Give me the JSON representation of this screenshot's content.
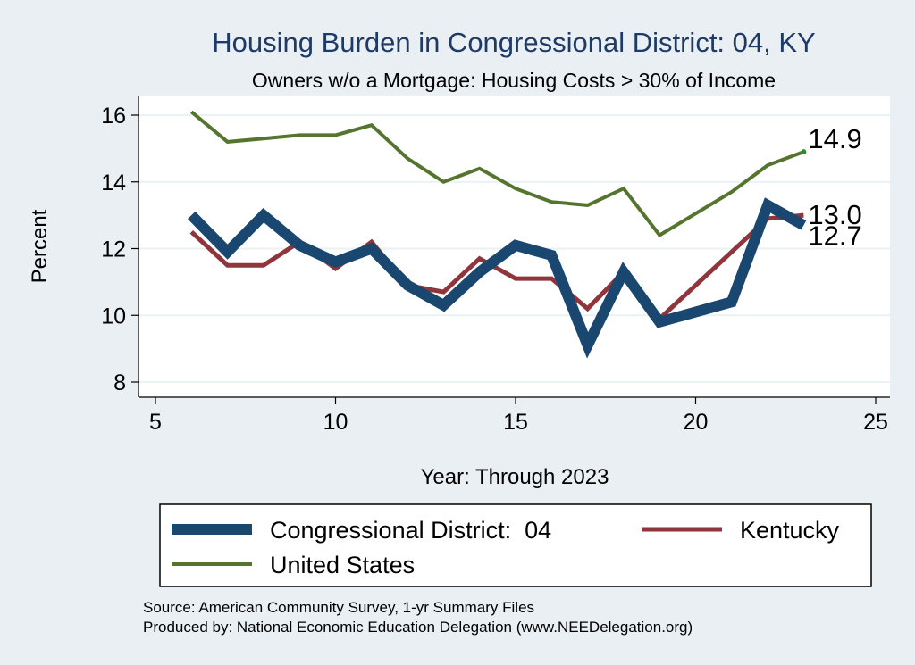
{
  "chart_data": {
    "type": "line",
    "title": "Housing Burden in Congressional District:  04, KY",
    "subtitle": "Owners w/o a Mortgage: Housing Costs > 30% of Income",
    "xlabel": "Year: Through 2023",
    "ylabel": "Percent",
    "xlim": [
      5,
      25
    ],
    "ylim": [
      7.5,
      16.5
    ],
    "xticks": [
      5,
      10,
      15,
      20,
      25
    ],
    "yticks": [
      8,
      10,
      12,
      14,
      16
    ],
    "grid": true,
    "legend_position": "bottom",
    "series": [
      {
        "name": "Congressional District:  04",
        "color": "#1a476f",
        "x": [
          6,
          7,
          8,
          9,
          10,
          11,
          12,
          13,
          14,
          15,
          16,
          17,
          18,
          19,
          21,
          22,
          23
        ],
        "values": [
          13.0,
          11.9,
          13.0,
          12.1,
          11.6,
          12.0,
          10.9,
          10.3,
          11.3,
          12.1,
          11.8,
          9.1,
          11.3,
          9.8,
          10.4,
          13.3,
          12.7
        ],
        "end_label": "12.7"
      },
      {
        "name": "Kentucky",
        "color": "#90353b",
        "x": [
          6,
          7,
          8,
          9,
          10,
          11,
          12,
          13,
          14,
          15,
          16,
          17,
          18,
          19,
          21,
          22,
          23
        ],
        "values": [
          12.5,
          11.5,
          11.5,
          12.2,
          11.4,
          12.2,
          10.9,
          10.7,
          11.7,
          11.1,
          11.1,
          10.2,
          11.3,
          9.9,
          11.9,
          12.9,
          13.0
        ],
        "end_label": "13.0"
      },
      {
        "name": "United States",
        "color": "#55752f",
        "x": [
          6,
          7,
          8,
          9,
          10,
          11,
          12,
          13,
          14,
          15,
          16,
          17,
          18,
          19,
          21,
          22,
          23
        ],
        "values": [
          16.1,
          15.2,
          15.3,
          15.4,
          15.4,
          15.7,
          14.7,
          14.0,
          14.4,
          13.8,
          13.4,
          13.3,
          13.8,
          12.4,
          13.7,
          14.5,
          14.9
        ],
        "end_label": "14.9"
      }
    ]
  },
  "footer": {
    "source": "Source: American Community Survey, 1-yr Summary Files",
    "produced_by": "Produced by: National Economic Education Delegation (www.NEEDelegation.org)"
  }
}
